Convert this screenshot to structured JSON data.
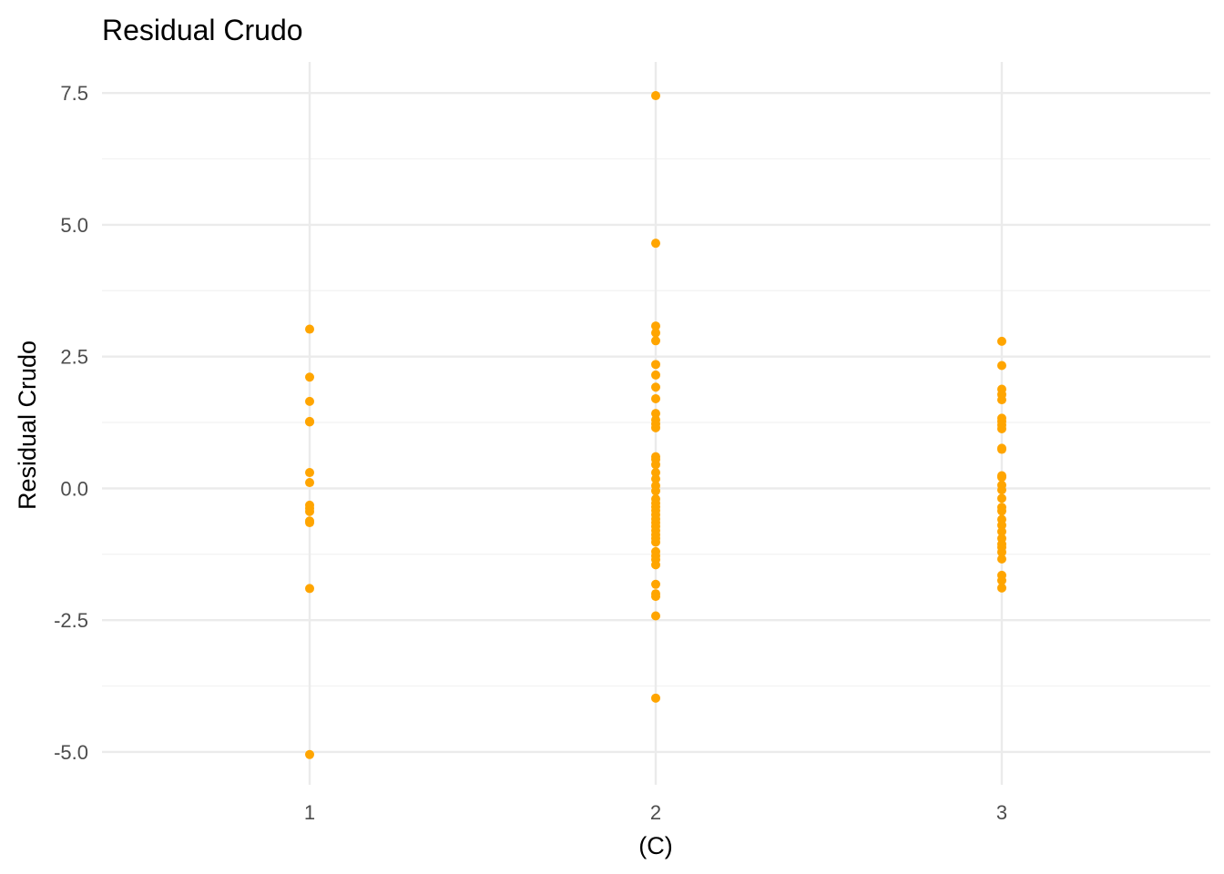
{
  "chart_data": {
    "type": "scatter",
    "title": "Residual Crudo",
    "xlabel": "(C)",
    "ylabel": "Residual Crudo",
    "categories": [
      "1",
      "2",
      "3"
    ],
    "x_ticks": [
      "1",
      "2",
      "3"
    ],
    "y_ticks": [
      -5.0,
      -2.5,
      0.0,
      2.5,
      5.0,
      7.5
    ],
    "y_tick_labels": [
      "-5.0",
      "-2.5",
      "0.0",
      "2.5",
      "5.0",
      "7.5"
    ],
    "ylim": [
      -5.7,
      8.1
    ],
    "grid": true,
    "point_color": "#FFA500",
    "series": [
      {
        "category": "1",
        "values": [
          3.02,
          2.11,
          1.65,
          1.27,
          1.26,
          0.3,
          0.11,
          -0.32,
          -0.38,
          -0.44,
          -0.62,
          -0.65,
          -1.9,
          -5.05
        ]
      },
      {
        "category": "2",
        "values": [
          7.45,
          4.65,
          3.08,
          2.95,
          2.8,
          2.35,
          2.15,
          1.92,
          1.7,
          1.42,
          1.3,
          1.22,
          1.15,
          0.6,
          0.55,
          0.45,
          0.3,
          0.18,
          0.05,
          -0.05,
          -0.2,
          -0.28,
          -0.35,
          -0.42,
          -0.5,
          -0.58,
          -0.65,
          -0.72,
          -0.8,
          -0.88,
          -0.95,
          -1.02,
          -1.2,
          -1.28,
          -1.35,
          -1.45,
          -1.82,
          -2.0,
          -2.05,
          -2.42,
          -3.98
        ]
      },
      {
        "category": "3",
        "values": [
          2.79,
          2.33,
          1.88,
          1.78,
          1.68,
          1.33,
          1.27,
          1.2,
          1.13,
          0.76,
          0.74,
          0.24,
          0.21,
          0.06,
          -0.03,
          -0.19,
          -0.36,
          -0.43,
          -0.59,
          -0.7,
          -0.82,
          -0.95,
          -1.06,
          -1.12,
          -1.21,
          -1.34,
          -1.65,
          -1.75,
          -1.89
        ]
      }
    ]
  }
}
